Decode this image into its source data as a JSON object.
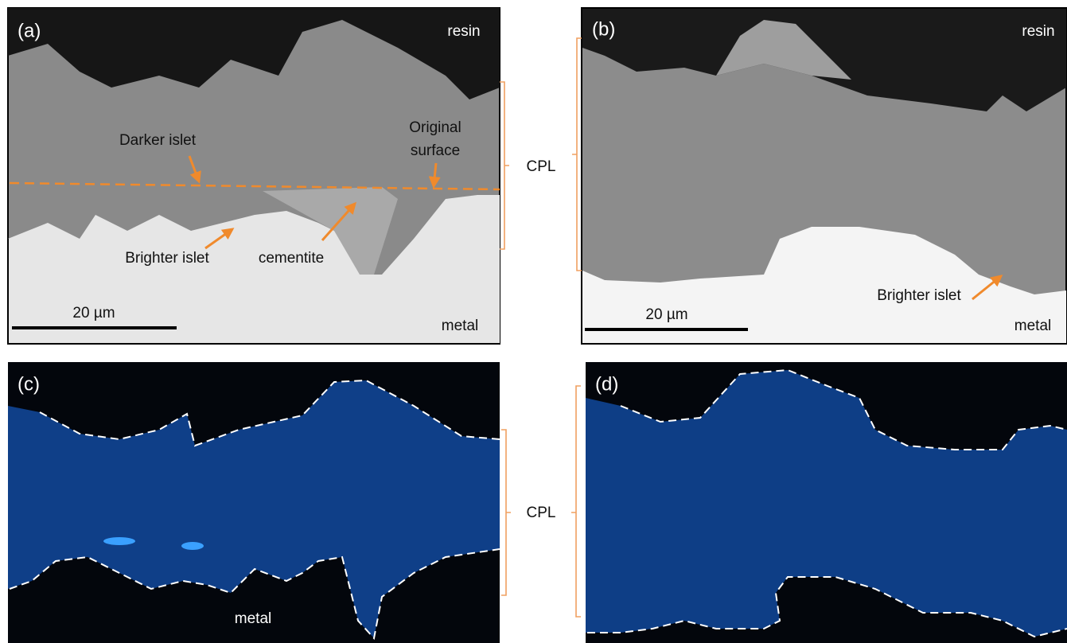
{
  "panels": [
    {
      "label": "(a)",
      "top_label": "resin",
      "bottom_label": "metal",
      "scale_bar": "20 µm",
      "annotations": [
        "Darker islet",
        [
          "Original",
          "surface"
        ],
        "Brighter islet",
        "cementite"
      ]
    },
    {
      "label": "(b)",
      "top_label": "resin",
      "bottom_label": "metal",
      "scale_bar": "20 µm",
      "annotations": [
        "Brighter islet"
      ]
    },
    {
      "label": "(c)",
      "bottom_label": "metal"
    },
    {
      "label": "(d)"
    }
  ],
  "cpl_labels": [
    "CPL",
    "CPL"
  ]
}
